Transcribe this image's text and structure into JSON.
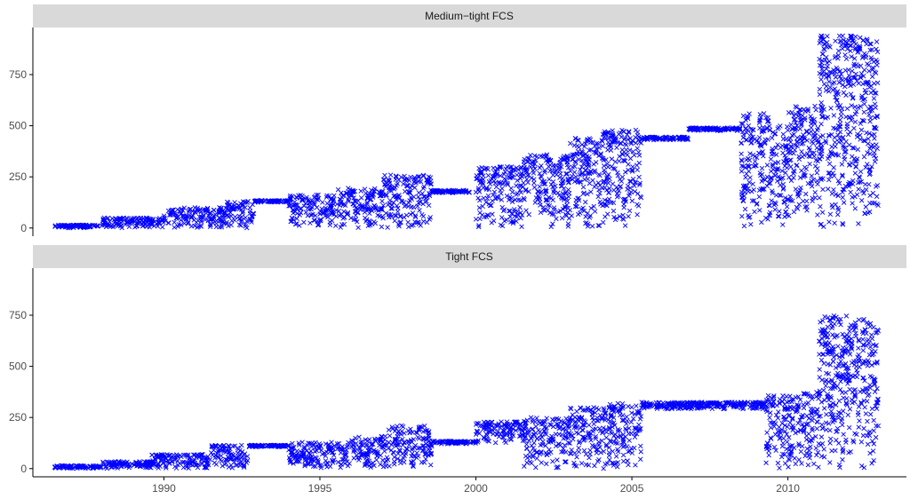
{
  "chart_data": {
    "type": "scatter",
    "marker": "x",
    "marker_color": "#0000ff",
    "strip_color": "#d9d9d9",
    "xlim": [
      1985.8,
      2013.8
    ],
    "ylim": [
      -40,
      980
    ],
    "x_ticks": [
      1990,
      1995,
      2000,
      2005,
      2010
    ],
    "y_ticks": [
      0,
      250,
      500,
      750
    ],
    "grid": false,
    "panels": [
      {
        "title": "Medium−tight FCS",
        "ranges": [
          {
            "x": [
              1986.5,
              1987.9
            ],
            "y": [
              0,
              15
            ]
          },
          {
            "x": [
              1988.0,
              1990.0
            ],
            "y": [
              0,
              50
            ]
          },
          {
            "x": [
              1990.0,
              1992.0
            ],
            "y": [
              0,
              100
            ]
          },
          {
            "x": [
              1992.0,
              1992.9
            ],
            "y": [
              0,
              135
            ]
          },
          {
            "x": [
              1992.9,
              1994.0
            ],
            "y": [
              125,
              135
            ]
          },
          {
            "x": [
              1994.0,
              1995.5
            ],
            "y": [
              10,
              165
            ]
          },
          {
            "x": [
              1995.5,
              1997.0
            ],
            "y": [
              0,
              195
            ]
          },
          {
            "x": [
              1997.0,
              1998.6
            ],
            "y": [
              0,
              260
            ]
          },
          {
            "x": [
              1998.6,
              1999.8
            ],
            "y": [
              170,
              185
            ]
          },
          {
            "x": [
              2000.0,
              2001.5
            ],
            "y": [
              0,
              300
            ]
          },
          {
            "x": [
              2001.5,
              2003.0
            ],
            "y": [
              0,
              360
            ]
          },
          {
            "x": [
              2003.0,
              2004.0
            ],
            "y": [
              0,
              440
            ]
          },
          {
            "x": [
              2004.0,
              2005.3
            ],
            "y": [
              0,
              480
            ]
          },
          {
            "x": [
              2005.3,
              2006.8
            ],
            "y": [
              430,
              445
            ]
          },
          {
            "x": [
              2006.8,
              2008.5
            ],
            "y": [
              475,
              490
            ]
          },
          {
            "x": [
              2008.5,
              2009.5
            ],
            "y": [
              0,
              560
            ]
          },
          {
            "x": [
              2009.5,
              2010.0
            ],
            "y": [
              0,
              500
            ]
          },
          {
            "x": [
              2010.0,
              2011.0
            ],
            "y": [
              50,
              600
            ]
          },
          {
            "x": [
              2011.0,
              2012.9
            ],
            "y": [
              0,
              940
            ]
          }
        ]
      },
      {
        "title": "Tight FCS",
        "ranges": [
          {
            "x": [
              1986.5,
              1988.0
            ],
            "y": [
              0,
              15
            ]
          },
          {
            "x": [
              1988.0,
              1989.6
            ],
            "y": [
              0,
              35
            ]
          },
          {
            "x": [
              1989.6,
              1991.5
            ],
            "y": [
              0,
              70
            ]
          },
          {
            "x": [
              1991.5,
              1992.7
            ],
            "y": [
              0,
              115
            ]
          },
          {
            "x": [
              1992.7,
              1994.0
            ],
            "y": [
              105,
              115
            ]
          },
          {
            "x": [
              1994.0,
              1996.0
            ],
            "y": [
              0,
              130
            ]
          },
          {
            "x": [
              1996.0,
              1997.2
            ],
            "y": [
              0,
              160
            ]
          },
          {
            "x": [
              1997.2,
              1998.6
            ],
            "y": [
              0,
              210
            ]
          },
          {
            "x": [
              1998.6,
              2000.0
            ],
            "y": [
              120,
              135
            ]
          },
          {
            "x": [
              2000.0,
              2001.5
            ],
            "y": [
              120,
              230
            ]
          },
          {
            "x": [
              2001.5,
              2003.0
            ],
            "y": [
              0,
              250
            ]
          },
          {
            "x": [
              2003.0,
              2004.3
            ],
            "y": [
              0,
              300
            ]
          },
          {
            "x": [
              2004.3,
              2005.3
            ],
            "y": [
              0,
              320
            ]
          },
          {
            "x": [
              2005.3,
              2009.3
            ],
            "y": [
              290,
              325
            ]
          },
          {
            "x": [
              2009.3,
              2010.5
            ],
            "y": [
              0,
              360
            ]
          },
          {
            "x": [
              2010.5,
              2011.0
            ],
            "y": [
              0,
              390
            ]
          },
          {
            "x": [
              2011.0,
              2012.9
            ],
            "y": [
              0,
              750
            ]
          }
        ]
      }
    ]
  }
}
